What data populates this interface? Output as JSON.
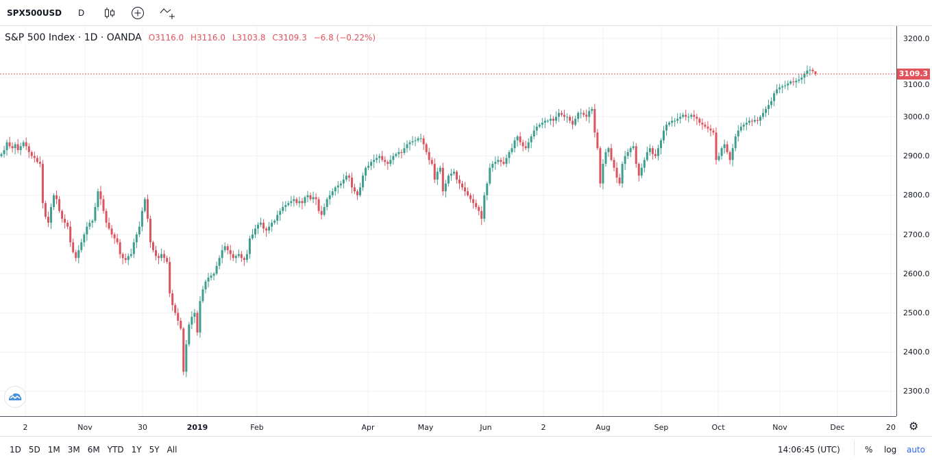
{
  "toolbar": {
    "symbol": "SPX500USD",
    "interval": "D",
    "icons": [
      "candles-icon",
      "compare-add-icon",
      "indicators-icon"
    ]
  },
  "legend": {
    "title": "S&P 500 Index · 1D · OANDA",
    "open": "O3116.0",
    "high": "H3116.0",
    "low": "L3103.8",
    "close": "C3109.3",
    "change": "−6.8 (−0.22%)"
  },
  "bottom": {
    "ranges": [
      "1D",
      "5D",
      "1M",
      "3M",
      "6M",
      "YTD",
      "1Y",
      "5Y",
      "All"
    ],
    "clock": "14:06:45 (UTC)",
    "percent": "%",
    "log": "log",
    "auto": "auto"
  },
  "colors": {
    "up": "#3f9d8f",
    "down": "#d9545f",
    "last_price": "#e0525c",
    "auto_active": "#2962ff"
  },
  "chart_data": {
    "type": "candlestick",
    "title": "S&P 500 Index · 1D · OANDA",
    "ylim": [
      2250,
      3250
    ],
    "y_ticks": [
      "2300.0",
      "2400.0",
      "2500.0",
      "2600.0",
      "2700.0",
      "2800.0",
      "2900.0",
      "3000.0",
      "3100.0",
      "3200.0"
    ],
    "x_ticks": [
      "2",
      "Nov",
      "30",
      "2019",
      "Feb",
      "Apr",
      "May",
      "Jun",
      "2",
      "Aug",
      "Sep",
      "Oct",
      "Nov",
      "Dec",
      "20"
    ],
    "last_price": "3109.3",
    "grid": true,
    "last_candle": {
      "open": 3116.0,
      "high": 3116.0,
      "low": 3103.8,
      "close": 3109.3
    },
    "closes": [
      2905,
      2915,
      2935,
      2925,
      2920,
      2930,
      2915,
      2925,
      2935,
      2925,
      2910,
      2900,
      2895,
      2885,
      2880,
      2780,
      2745,
      2730,
      2770,
      2800,
      2790,
      2760,
      2740,
      2730,
      2720,
      2680,
      2655,
      2640,
      2660,
      2680,
      2700,
      2720,
      2730,
      2735,
      2770,
      2810,
      2790,
      2760,
      2730,
      2715,
      2700,
      2690,
      2680,
      2650,
      2640,
      2635,
      2645,
      2650,
      2680,
      2700,
      2720,
      2760,
      2790,
      2740,
      2680,
      2660,
      2645,
      2640,
      2650,
      2640,
      2630,
      2550,
      2520,
      2500,
      2480,
      2460,
      2350,
      2420,
      2470,
      2490,
      2500,
      2450,
      2530,
      2560,
      2580,
      2590,
      2595,
      2600,
      2620,
      2640,
      2660,
      2670,
      2660,
      2650,
      2640,
      2645,
      2650,
      2640,
      2635,
      2650,
      2690,
      2700,
      2715,
      2725,
      2730,
      2715,
      2710,
      2720,
      2730,
      2735,
      2750,
      2760,
      2770,
      2775,
      2780,
      2785,
      2790,
      2780,
      2785,
      2780,
      2795,
      2800,
      2790,
      2795,
      2790,
      2760,
      2750,
      2770,
      2790,
      2800,
      2810,
      2820,
      2825,
      2830,
      2840,
      2850,
      2845,
      2820,
      2810,
      2800,
      2820,
      2850,
      2870,
      2875,
      2885,
      2890,
      2895,
      2900,
      2890,
      2885,
      2880,
      2890,
      2900,
      2905,
      2910,
      2908,
      2920,
      2930,
      2935,
      2938,
      2940,
      2945,
      2945,
      2930,
      2910,
      2890,
      2880,
      2840,
      2860,
      2870,
      2810,
      2830,
      2850,
      2855,
      2860,
      2840,
      2830,
      2820,
      2810,
      2800,
      2790,
      2780,
      2770,
      2760,
      2740,
      2800,
      2830,
      2870,
      2880,
      2885,
      2890,
      2885,
      2880,
      2895,
      2910,
      2920,
      2940,
      2950,
      2935,
      2925,
      2920,
      2935,
      2950,
      2965,
      2975,
      2980,
      2985,
      2990,
      2990,
      2995,
      2990,
      3000,
      3010,
      3005,
      3000,
      3000,
      2990,
      2980,
      2995,
      3010,
      3010,
      3005,
      3000,
      3015,
      3020,
      2960,
      2920,
      2830,
      2880,
      2910,
      2920,
      2890,
      2870,
      2845,
      2830,
      2880,
      2900,
      2910,
      2920,
      2925,
      2880,
      2850,
      2870,
      2890,
      2910,
      2920,
      2905,
      2900,
      2920,
      2940,
      2965,
      2980,
      2985,
      2990,
      2990,
      2995,
      3000,
      3005,
      3000,
      3000,
      3005,
      3000,
      2995,
      2985,
      2980,
      2975,
      2970,
      2965,
      2960,
      2890,
      2900,
      2920,
      2930,
      2910,
      2890,
      2920,
      2950,
      2965,
      2975,
      2980,
      2985,
      2990,
      2988,
      2992,
      2990,
      3000,
      3010,
      3020,
      3030,
      3040,
      3060,
      3070,
      3075,
      3078,
      3080,
      3085,
      3090,
      3088,
      3092,
      3095,
      3100,
      3110,
      3118,
      3120,
      3116,
      3109.3
    ]
  }
}
